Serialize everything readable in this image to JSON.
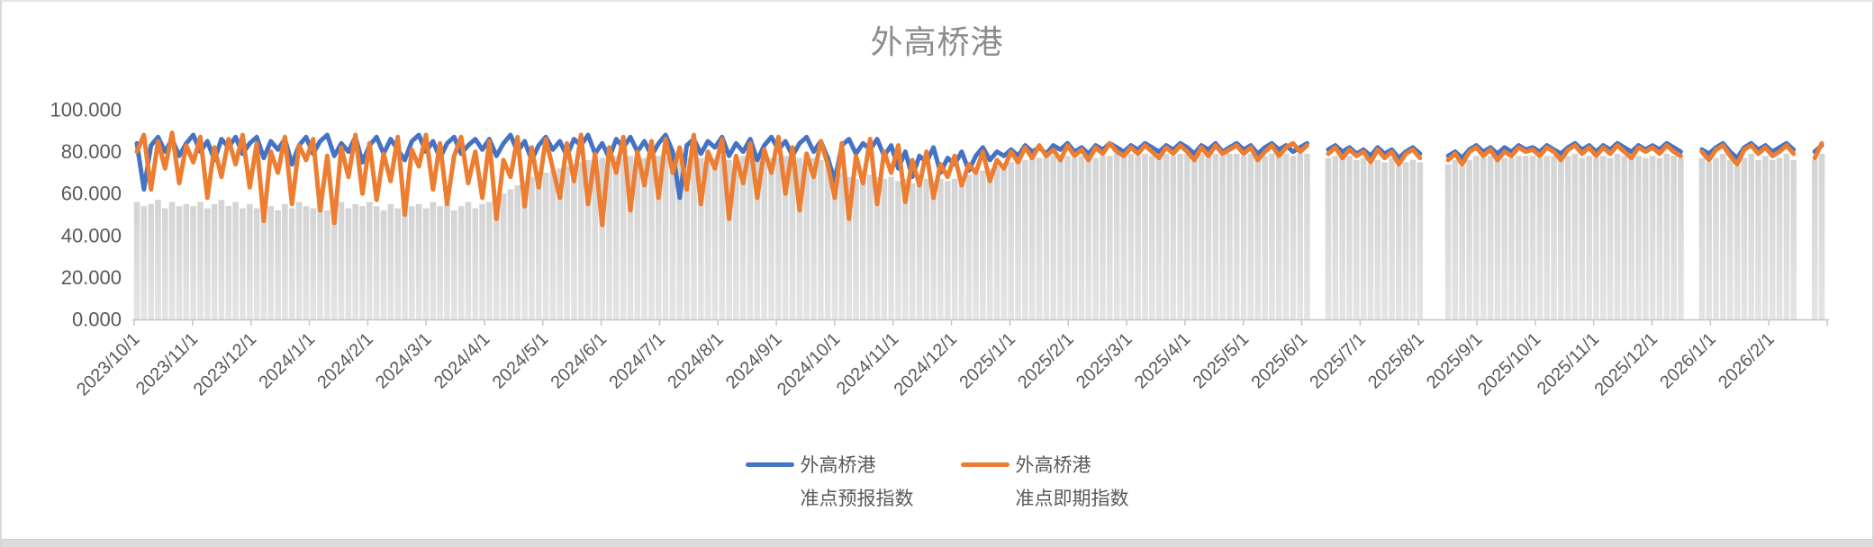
{
  "chart": {
    "title": "外高桥港",
    "colors": {
      "forecast_line": "#4472C4",
      "spot_line": "#ED7D31",
      "background_bars_top": "#D4D4D4",
      "background_bars_bottom": "#E4E4E4",
      "axis": "#C6C6C6",
      "tick_label": "#595959",
      "title": "#8C8C8C"
    },
    "legend": {
      "items": [
        {
          "line1": "外高桥港",
          "line2": "准点预报指数",
          "color": "#4472C4"
        },
        {
          "line1": "外高桥港",
          "line2": "准点即期指数",
          "color": "#ED7D31"
        }
      ]
    }
  },
  "chart_data": {
    "type": "line",
    "title": "外高桥港",
    "ylim": [
      0,
      100
    ],
    "y_tick_labels": [
      "100.000",
      "80.000",
      "60.000",
      "40.000",
      "20.000",
      "0.000"
    ],
    "grid": false,
    "legend_position": "bottom",
    "x_tick_labels": [
      "2023/10/1",
      "2023/11/1",
      "2023/12/1",
      "2024/1/1",
      "2024/2/1",
      "2024/3/1",
      "2024/4/1",
      "2024/5/1",
      "2024/6/1",
      "2024/7/1",
      "2024/8/1",
      "2024/9/1",
      "2024/10/1",
      "2024/11/1",
      "2024/12/1",
      "2025/1/1",
      "2025/2/1",
      "2025/3/1",
      "2025/4/1",
      "2025/5/1",
      "2025/6/1",
      "2025/7/1",
      "2025/8/1",
      "2025/9/1",
      "2025/10/1",
      "2025/11/1",
      "2025/12/1",
      "2026/1/1",
      "2026/2/1"
    ],
    "series": [
      {
        "name": "外高桥港 准点预报指数",
        "type": "line",
        "color": "#4472C4",
        "values": [
          84,
          62,
          83,
          87,
          80,
          86,
          78,
          84,
          88,
          80,
          85,
          76,
          86,
          82,
          87,
          79,
          84,
          87,
          77,
          85,
          81,
          86,
          74,
          83,
          87,
          79,
          85,
          88,
          78,
          84,
          80,
          87,
          75,
          83,
          87,
          79,
          86,
          81,
          76,
          85,
          88,
          80,
          85,
          77,
          84,
          87,
          79,
          83,
          86,
          81,
          86,
          78,
          84,
          88,
          80,
          85,
          76,
          83,
          87,
          81,
          85,
          78,
          86,
          83,
          88,
          79,
          84,
          77,
          86,
          82,
          87,
          80,
          85,
          78,
          84,
          88,
          80,
          58,
          83,
          86,
          79,
          85,
          82,
          87,
          78,
          84,
          80,
          86,
          76,
          83,
          87,
          81,
          85,
          78,
          84,
          87,
          80,
          85,
          77,
          66,
          83,
          86,
          79,
          84,
          81,
          86,
          78,
          83,
          72,
          80,
          68,
          78,
          75,
          82,
          70,
          77,
          74,
          80,
          71,
          78,
          82,
          76,
          80,
          78,
          81,
          78,
          83,
          80,
          82,
          79,
          83,
          81,
          84,
          80,
          82,
          79,
          83,
          81,
          84,
          82,
          80,
          83,
          81,
          84,
          82,
          80,
          83,
          81,
          84,
          82,
          79,
          83,
          81,
          84,
          80,
          82,
          84,
          81,
          83,
          79,
          82,
          84,
          81,
          83,
          80,
          82,
          84,
          null,
          null,
          81,
          83,
          80,
          82,
          79,
          81,
          78,
          82,
          79,
          81,
          77,
          80,
          82,
          79,
          null,
          null,
          null,
          78,
          80,
          77,
          81,
          83,
          80,
          82,
          79,
          82,
          80,
          83,
          81,
          82,
          80,
          83,
          81,
          79,
          82,
          84,
          81,
          83,
          80,
          83,
          81,
          84,
          82,
          80,
          83,
          81,
          83,
          81,
          84,
          82,
          80,
          null,
          null,
          81,
          79,
          82,
          84,
          80,
          77,
          82,
          84,
          81,
          83,
          80,
          82,
          84,
          81,
          null,
          null,
          80,
          83
        ]
      },
      {
        "name": "外高桥港 准点即期指数",
        "type": "line",
        "color": "#ED7D31",
        "values": [
          80,
          88,
          62,
          85,
          72,
          89,
          65,
          83,
          75,
          87,
          58,
          82,
          68,
          86,
          74,
          88,
          63,
          84,
          47,
          80,
          70,
          87,
          55,
          83,
          76,
          86,
          52,
          78,
          46,
          82,
          68,
          88,
          60,
          84,
          57,
          79,
          66,
          87,
          50,
          81,
          73,
          88,
          62,
          84,
          55,
          78,
          87,
          65,
          80,
          58,
          85,
          48,
          76,
          68,
          87,
          54,
          82,
          63,
          86,
          72,
          58,
          84,
          66,
          88,
          55,
          79,
          45,
          82,
          70,
          87,
          52,
          80,
          64,
          85,
          58,
          86,
          70,
          82,
          62,
          88,
          55,
          80,
          72,
          86,
          48,
          78,
          65,
          84,
          58,
          81,
          70,
          87,
          60,
          82,
          52,
          79,
          68,
          85,
          74,
          58,
          84,
          48,
          78,
          65,
          86,
          55,
          80,
          70,
          83,
          56,
          76,
          64,
          80,
          58,
          74,
          68,
          78,
          64,
          74,
          70,
          80,
          66,
          76,
          72,
          80,
          75,
          82,
          77,
          83,
          78,
          81,
          76,
          83,
          78,
          81,
          76,
          82,
          79,
          84,
          80,
          78,
          82,
          79,
          83,
          80,
          77,
          82,
          79,
          83,
          80,
          76,
          82,
          78,
          83,
          79,
          81,
          83,
          79,
          82,
          76,
          80,
          83,
          78,
          82,
          84,
          80,
          83,
          null,
          null,
          79,
          82,
          77,
          81,
          78,
          80,
          75,
          81,
          77,
          80,
          74,
          79,
          81,
          77,
          null,
          null,
          null,
          76,
          79,
          74,
          80,
          82,
          78,
          81,
          76,
          80,
          78,
          82,
          80,
          81,
          78,
          82,
          80,
          76,
          81,
          83,
          79,
          82,
          78,
          82,
          79,
          83,
          80,
          77,
          82,
          80,
          82,
          79,
          83,
          80,
          78,
          null,
          null,
          80,
          76,
          81,
          83,
          78,
          74,
          81,
          83,
          79,
          82,
          78,
          80,
          83,
          79,
          null,
          null,
          77,
          84
        ]
      },
      {
        "name": "背景灰色柱",
        "type": "bar",
        "color": "#D9D9D9",
        "values": [
          56,
          54,
          55,
          57,
          53,
          56,
          54,
          55,
          54,
          56,
          53,
          55,
          57,
          54,
          56,
          53,
          55,
          53,
          56,
          54,
          52,
          55,
          53,
          56,
          54,
          53,
          55,
          52,
          54,
          56,
          53,
          55,
          54,
          56,
          54,
          52,
          55,
          53,
          56,
          54,
          55,
          53,
          56,
          54,
          55,
          52,
          54,
          56,
          53,
          55,
          56,
          58,
          60,
          62,
          64,
          66,
          68,
          69,
          70,
          71,
          72,
          73,
          74,
          75,
          76,
          77,
          77,
          76,
          78,
          77,
          78,
          76,
          77,
          78,
          78,
          77,
          78,
          76,
          77,
          78,
          77,
          78,
          77,
          78,
          76,
          77,
          78,
          76,
          77,
          78,
          77,
          77,
          78,
          76,
          77,
          78,
          77,
          76,
          78,
          72,
          70,
          68,
          67,
          68,
          69,
          68,
          67,
          68,
          66,
          67,
          65,
          66,
          67,
          66,
          67,
          66,
          67,
          68,
          69,
          70,
          71,
          72,
          73,
          74,
          75,
          76,
          76,
          77,
          77,
          78,
          78,
          78,
          78,
          77,
          78,
          78,
          77,
          78,
          78,
          79,
          78,
          79,
          78,
          79,
          78,
          78,
          79,
          78,
          79,
          79,
          78,
          79,
          78,
          79,
          78,
          79,
          79,
          78,
          79,
          77,
          78,
          79,
          78,
          79,
          78,
          79,
          79,
          null,
          null,
          77,
          78,
          77,
          78,
          76,
          77,
          74,
          76,
          75,
          77,
          73,
          75,
          76,
          75,
          null,
          null,
          null,
          74,
          76,
          73,
          76,
          78,
          77,
          78,
          76,
          77,
          77,
          78,
          78,
          78,
          77,
          78,
          78,
          76,
          78,
          79,
          77,
          78,
          77,
          78,
          77,
          79,
          78,
          77,
          78,
          77,
          78,
          77,
          79,
          78,
          77,
          null,
          null,
          77,
          75,
          77,
          79,
          76,
          73,
          77,
          79,
          76,
          78,
          76,
          77,
          79,
          76,
          null,
          null,
          76,
          79
        ]
      }
    ]
  }
}
